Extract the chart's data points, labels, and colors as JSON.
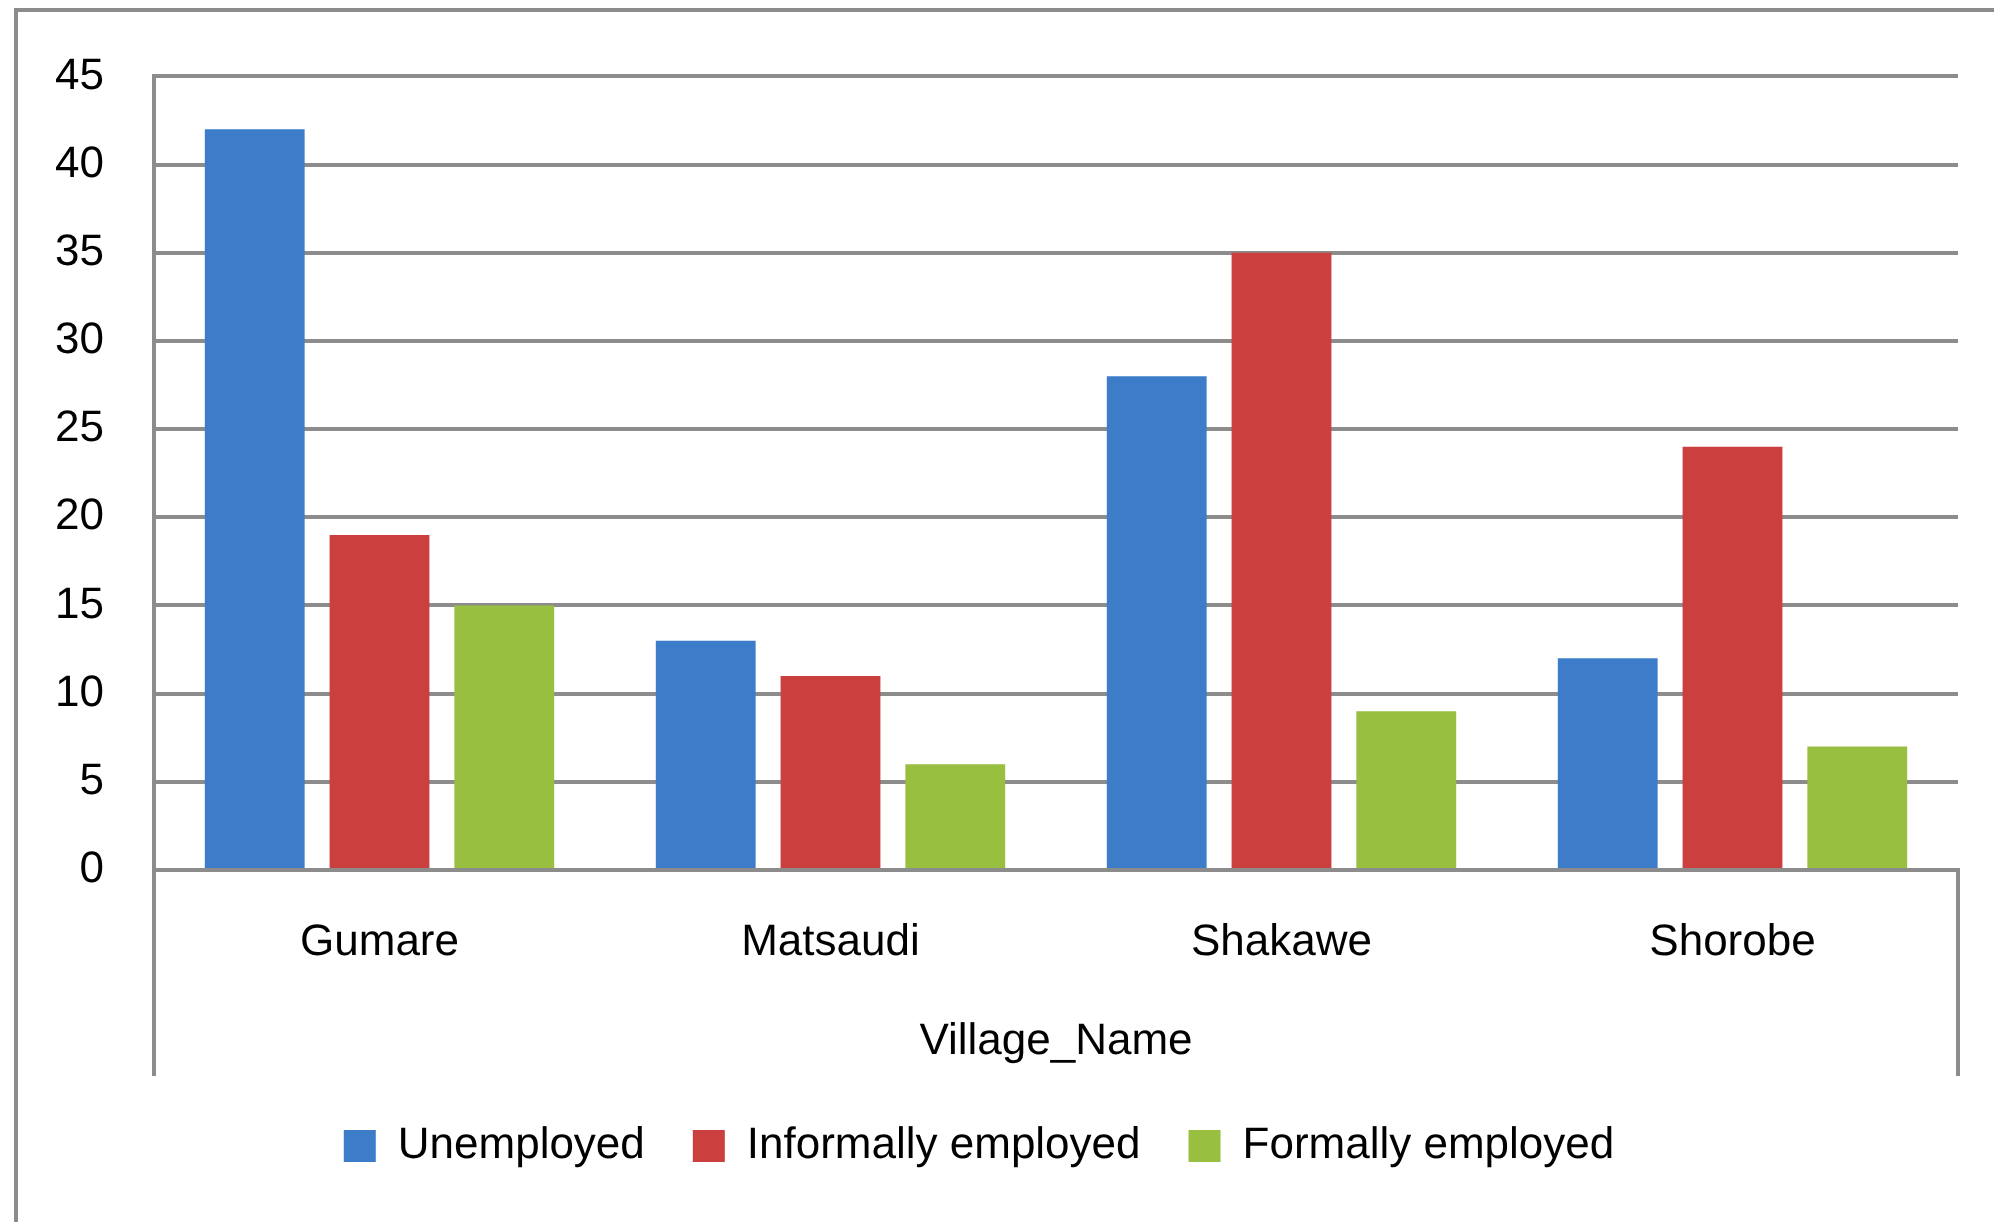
{
  "chart_data": {
    "type": "bar",
    "xlabel": "Village_Name",
    "categories": [
      "Gumare",
      "Matsaudi",
      "Shakawe",
      "Shorobe"
    ],
    "series": [
      {
        "name": "Unemployed",
        "color": "#3d7cc9",
        "values": [
          42,
          13,
          28,
          12
        ]
      },
      {
        "name": "Informally employed",
        "color": "#cc3f3f",
        "values": [
          19,
          11,
          35,
          24
        ]
      },
      {
        "name": "Formally employed",
        "color": "#98bf3f",
        "values": [
          15,
          6,
          9,
          7
        ]
      }
    ],
    "ylim": [
      0,
      45
    ],
    "yticks": [
      0,
      5,
      10,
      15,
      20,
      25,
      30,
      35,
      40,
      45
    ],
    "grid": "y",
    "legend": "bottom"
  }
}
